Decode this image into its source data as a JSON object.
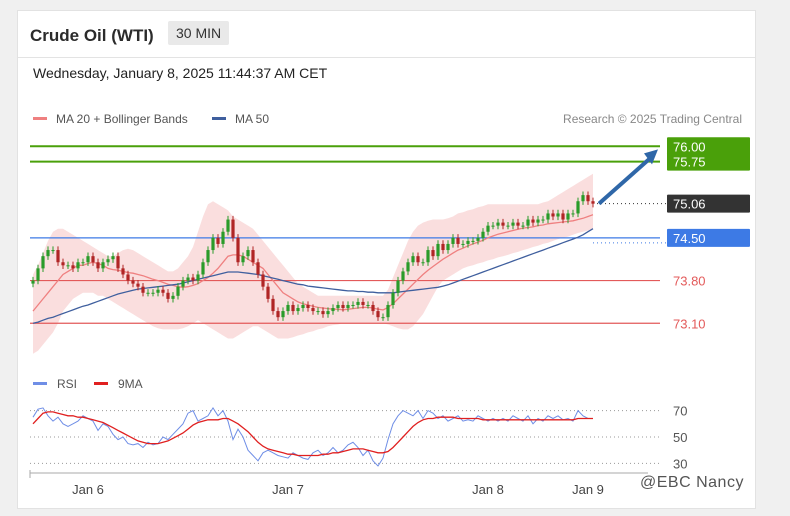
{
  "header": {
    "title": "Crude Oil (WTI)",
    "timeframe": "30 MIN",
    "datetime": "Wednesday, January 8, 2025 11:44:37 AM CET"
  },
  "credit": "Research © 2025 Trading Central",
  "watermark": "@EBC Nancy",
  "colors": {
    "green_target": "#4aa00a",
    "pivot_blue": "#3d7ae5",
    "support_red": "#e35a5a",
    "ma20": "#ef8080",
    "ma50": "#3f5f9e",
    "bollinger_fill": "#f9d8d8",
    "candle_up": "#2a9b2a",
    "candle_down": "#b02525",
    "last_price_bg": "#333333",
    "arrow": "#2f67a8",
    "rsi": "#6f8ee6",
    "rsi_ma": "#e02020"
  },
  "chart_data": [
    {
      "type": "candlestick",
      "title": "Crude Oil (WTI)",
      "timeframe": "30 MIN",
      "legend": [
        {
          "name": "MA 20 + Bollinger Bands",
          "color": "#ef8080"
        },
        {
          "name": "MA 50",
          "color": "#3f5f9e"
        }
      ],
      "y_range": [
        72.4,
        76.3
      ],
      "x_ticks": [
        {
          "label": "Jan 6",
          "bar": 11
        },
        {
          "label": "Jan 7",
          "bar": 51
        },
        {
          "label": "Jan 8",
          "bar": 91
        },
        {
          "label": "Jan 9",
          "bar": 111
        }
      ],
      "levels": [
        {
          "value": 76.0,
          "label": "76.00",
          "kind": "resistance-target",
          "color": "#4aa00a"
        },
        {
          "value": 75.75,
          "label": "75.75",
          "kind": "resistance-target",
          "color": "#4aa00a"
        },
        {
          "value": 74.5,
          "label": "74.50",
          "kind": "pivot",
          "color": "#3d7ae5"
        },
        {
          "value": 73.8,
          "label": "73.80",
          "kind": "support",
          "color": "#e35a5a"
        },
        {
          "value": 73.1,
          "label": "73.10",
          "kind": "support",
          "color": "#e35a5a"
        }
      ],
      "last_price": {
        "value": 75.06,
        "label": "75.06"
      },
      "forecast_arrow": {
        "from": 75.06,
        "to": 75.9
      },
      "close": [
        73.8,
        74.0,
        74.2,
        74.3,
        74.3,
        74.1,
        74.05,
        74.05,
        74.0,
        74.1,
        74.1,
        74.2,
        74.1,
        74.0,
        74.1,
        74.15,
        74.2,
        74.0,
        73.9,
        73.8,
        73.75,
        73.7,
        73.6,
        73.6,
        73.6,
        73.65,
        73.6,
        73.5,
        73.55,
        73.7,
        73.8,
        73.85,
        73.8,
        73.9,
        74.1,
        74.3,
        74.5,
        74.4,
        74.6,
        74.8,
        74.5,
        74.1,
        74.2,
        74.3,
        74.1,
        73.9,
        73.7,
        73.5,
        73.3,
        73.2,
        73.3,
        73.4,
        73.3,
        73.35,
        73.4,
        73.35,
        73.3,
        73.3,
        73.25,
        73.3,
        73.35,
        73.4,
        73.35,
        73.4,
        73.4,
        73.45,
        73.4,
        73.4,
        73.3,
        73.2,
        73.2,
        73.4,
        73.6,
        73.8,
        73.95,
        74.1,
        74.2,
        74.1,
        74.1,
        74.3,
        74.2,
        74.4,
        74.3,
        74.4,
        74.5,
        74.4,
        74.4,
        74.45,
        74.45,
        74.5,
        74.6,
        74.7,
        74.7,
        74.75,
        74.7,
        74.7,
        74.75,
        74.7,
        74.7,
        74.8,
        74.75,
        74.8,
        74.8,
        74.9,
        74.85,
        74.9,
        74.8,
        74.9,
        74.9,
        75.1,
        75.2,
        75.1,
        75.06
      ],
      "ma20": [
        73.3,
        73.4,
        73.5,
        73.6,
        73.7,
        73.8,
        73.9,
        73.95,
        74.0,
        74.05,
        74.05,
        74.08,
        74.1,
        74.08,
        74.05,
        74.0,
        73.98,
        73.97,
        73.95,
        73.93,
        73.92,
        73.9,
        73.88,
        73.85,
        73.82,
        73.8,
        73.77,
        73.74,
        73.72,
        73.7,
        73.69,
        73.7,
        73.72,
        73.75,
        73.8,
        73.85,
        73.92,
        74.0,
        74.1,
        74.2,
        74.22,
        74.22,
        74.2,
        74.15,
        74.1,
        74.05,
        74.0,
        73.9,
        73.8,
        73.7,
        73.6,
        73.55,
        73.5,
        73.45,
        73.42,
        73.4,
        73.38,
        73.36,
        73.35,
        73.34,
        73.33,
        73.33,
        73.32,
        73.33,
        73.34,
        73.35,
        73.36,
        73.36,
        73.35,
        73.33,
        73.32,
        73.36,
        73.42,
        73.5,
        73.58,
        73.66,
        73.74,
        73.82,
        73.9,
        73.97,
        74.03,
        74.09,
        74.15,
        74.2,
        74.25,
        74.3,
        74.33,
        74.37,
        74.4,
        74.43,
        74.46,
        74.5,
        74.53,
        74.56,
        74.58,
        74.6,
        74.62,
        74.64,
        74.66,
        74.67,
        74.68,
        74.7,
        74.71,
        74.73,
        74.74,
        74.75,
        74.76,
        74.77,
        74.78,
        74.8,
        74.82,
        74.85,
        74.88
      ],
      "ma50": [
        73.1,
        73.12,
        73.15,
        73.18,
        73.2,
        73.23,
        73.26,
        73.29,
        73.32,
        73.35,
        73.38,
        73.4,
        73.43,
        73.46,
        73.49,
        73.52,
        73.55,
        73.58,
        73.6,
        73.62,
        73.64,
        73.66,
        73.67,
        73.68,
        73.69,
        73.7,
        73.71,
        73.72,
        73.73,
        73.74,
        73.76,
        73.78,
        73.8,
        73.82,
        73.84,
        73.86,
        73.88,
        73.9,
        73.92,
        73.94,
        73.94,
        73.94,
        73.93,
        73.92,
        73.91,
        73.9,
        73.88,
        73.86,
        73.84,
        73.82,
        73.8,
        73.78,
        73.76,
        73.74,
        73.73,
        73.71,
        73.7,
        73.69,
        73.68,
        73.67,
        73.66,
        73.65,
        73.64,
        73.63,
        73.63,
        73.62,
        73.62,
        73.61,
        73.61,
        73.6,
        73.6,
        73.6,
        73.6,
        73.61,
        73.62,
        73.63,
        73.64,
        73.65,
        73.66,
        73.67,
        73.68,
        73.69,
        73.71,
        73.73,
        73.76,
        73.79,
        73.82,
        73.85,
        73.88,
        73.91,
        73.94,
        73.97,
        74.0,
        74.03,
        74.06,
        74.09,
        74.12,
        74.15,
        74.18,
        74.21,
        74.24,
        74.27,
        74.3,
        74.33,
        74.36,
        74.39,
        74.42,
        74.45,
        74.48,
        74.51,
        74.55,
        74.6,
        74.65
      ],
      "bb_upper": [
        73.9,
        74.05,
        74.25,
        74.45,
        74.6,
        74.65,
        74.65,
        74.6,
        74.55,
        74.5,
        74.45,
        74.4,
        74.35,
        74.3,
        74.25,
        74.2,
        74.2,
        74.25,
        74.3,
        74.32,
        74.3,
        74.25,
        74.2,
        74.15,
        74.1,
        74.05,
        74.0,
        73.95,
        73.95,
        74.0,
        74.1,
        74.2,
        74.35,
        74.6,
        74.85,
        75.05,
        75.1,
        75.05,
        75.0,
        74.95,
        74.85,
        74.8,
        74.75,
        74.7,
        74.65,
        74.55,
        74.45,
        74.35,
        74.25,
        74.15,
        74.05,
        73.95,
        73.85,
        73.75,
        73.7,
        73.65,
        73.6,
        73.55,
        73.55,
        73.55,
        73.55,
        73.55,
        73.55,
        73.55,
        73.55,
        73.55,
        73.55,
        73.55,
        73.55,
        73.55,
        73.55,
        73.65,
        73.85,
        74.05,
        74.25,
        74.45,
        74.6,
        74.7,
        74.75,
        74.78,
        74.8,
        74.8,
        74.8,
        74.82,
        74.85,
        74.9,
        74.92,
        74.95,
        74.97,
        75.0,
        75.02,
        75.05,
        75.05,
        75.05,
        75.05,
        75.05,
        75.05,
        75.05,
        75.05,
        75.05,
        75.05,
        75.05,
        75.08,
        75.1,
        75.15,
        75.2,
        75.25,
        75.3,
        75.35,
        75.4,
        75.45,
        75.5,
        75.55
      ],
      "bb_lower": [
        72.6,
        72.65,
        72.75,
        72.85,
        72.95,
        73.1,
        73.3,
        73.4,
        73.5,
        73.55,
        73.6,
        73.6,
        73.6,
        73.55,
        73.55,
        73.5,
        73.45,
        73.4,
        73.35,
        73.3,
        73.25,
        73.2,
        73.15,
        73.1,
        73.05,
        73.02,
        73.0,
        73.0,
        73.0,
        73.0,
        73.02,
        73.05,
        73.1,
        73.15,
        73.1,
        73.05,
        73.0,
        72.95,
        72.9,
        72.85,
        72.85,
        72.9,
        72.95,
        73.0,
        73.05,
        73.05,
        73.0,
        72.95,
        72.9,
        72.85,
        72.85,
        72.85,
        72.87,
        72.9,
        72.92,
        72.95,
        72.97,
        73.0,
        73.02,
        73.05,
        73.07,
        73.08,
        73.1,
        73.1,
        73.1,
        73.1,
        73.1,
        73.1,
        73.1,
        73.1,
        73.1,
        73.08,
        73.05,
        73.02,
        73.0,
        73.0,
        73.05,
        73.15,
        73.25,
        73.4,
        73.55,
        73.7,
        73.8,
        73.85,
        73.9,
        73.95,
        74.0,
        74.03,
        74.05,
        74.08,
        74.1,
        74.13,
        74.15,
        74.18,
        74.2,
        74.22,
        74.25,
        74.27,
        74.3,
        74.32,
        74.35,
        74.37,
        74.4,
        74.42,
        74.45,
        74.48,
        74.5,
        74.52,
        74.55,
        74.58,
        74.6,
        74.62,
        74.65
      ]
    },
    {
      "type": "line",
      "legend": [
        {
          "name": "RSI",
          "color": "#6f8ee6"
        },
        {
          "name": "9MA",
          "color": "#e02020"
        }
      ],
      "y_ticks": [
        70,
        50,
        30
      ],
      "y_range": [
        25,
        78
      ],
      "series": [
        {
          "name": "RSI",
          "values": [
            65,
            71,
            72,
            66,
            62,
            65,
            60,
            58,
            60,
            62,
            66,
            64,
            62,
            55,
            60,
            58,
            52,
            48,
            50,
            45,
            44,
            45,
            42,
            46,
            44,
            45,
            50,
            48,
            52,
            56,
            60,
            68,
            70,
            62,
            64,
            66,
            72,
            66,
            70,
            62,
            48,
            56,
            50,
            40,
            36,
            32,
            38,
            40,
            38,
            36,
            35,
            34,
            38,
            36,
            34,
            33,
            38,
            40,
            36,
            38,
            42,
            38,
            40,
            44,
            46,
            42,
            36,
            40,
            32,
            28,
            34,
            48,
            60,
            66,
            70,
            68,
            66,
            70,
            64,
            70,
            68,
            64,
            66,
            62,
            64,
            66,
            62,
            63,
            62,
            66,
            64,
            62,
            64,
            62,
            64,
            62,
            66,
            64,
            62,
            66,
            60,
            64,
            62,
            66,
            64,
            66,
            63,
            64,
            62,
            70,
            66,
            64,
            64
          ]
        },
        {
          "name": "9MA",
          "values": [
            60,
            64,
            68,
            69,
            69,
            68,
            67,
            66,
            66,
            65,
            65,
            64,
            63,
            62,
            61,
            59,
            57,
            55,
            53,
            51,
            49,
            47,
            46,
            45,
            45,
            45,
            46,
            47,
            49,
            51,
            53,
            56,
            59,
            61,
            62,
            63,
            63,
            63,
            64,
            64,
            62,
            60,
            57,
            54,
            50,
            46,
            43,
            41,
            40,
            39,
            38,
            37,
            37,
            36,
            36,
            36,
            36,
            36,
            37,
            37,
            38,
            38,
            39,
            40,
            41,
            41,
            41,
            40,
            39,
            38,
            38,
            39,
            42,
            46,
            50,
            54,
            58,
            61,
            63,
            64,
            64,
            65,
            65,
            65,
            65,
            64,
            64,
            64,
            64,
            64,
            63,
            63,
            63,
            63,
            63,
            63,
            63,
            63,
            63,
            63,
            63,
            63,
            63,
            63,
            63,
            63,
            63,
            63,
            63,
            64,
            64,
            64,
            64
          ]
        }
      ]
    }
  ]
}
